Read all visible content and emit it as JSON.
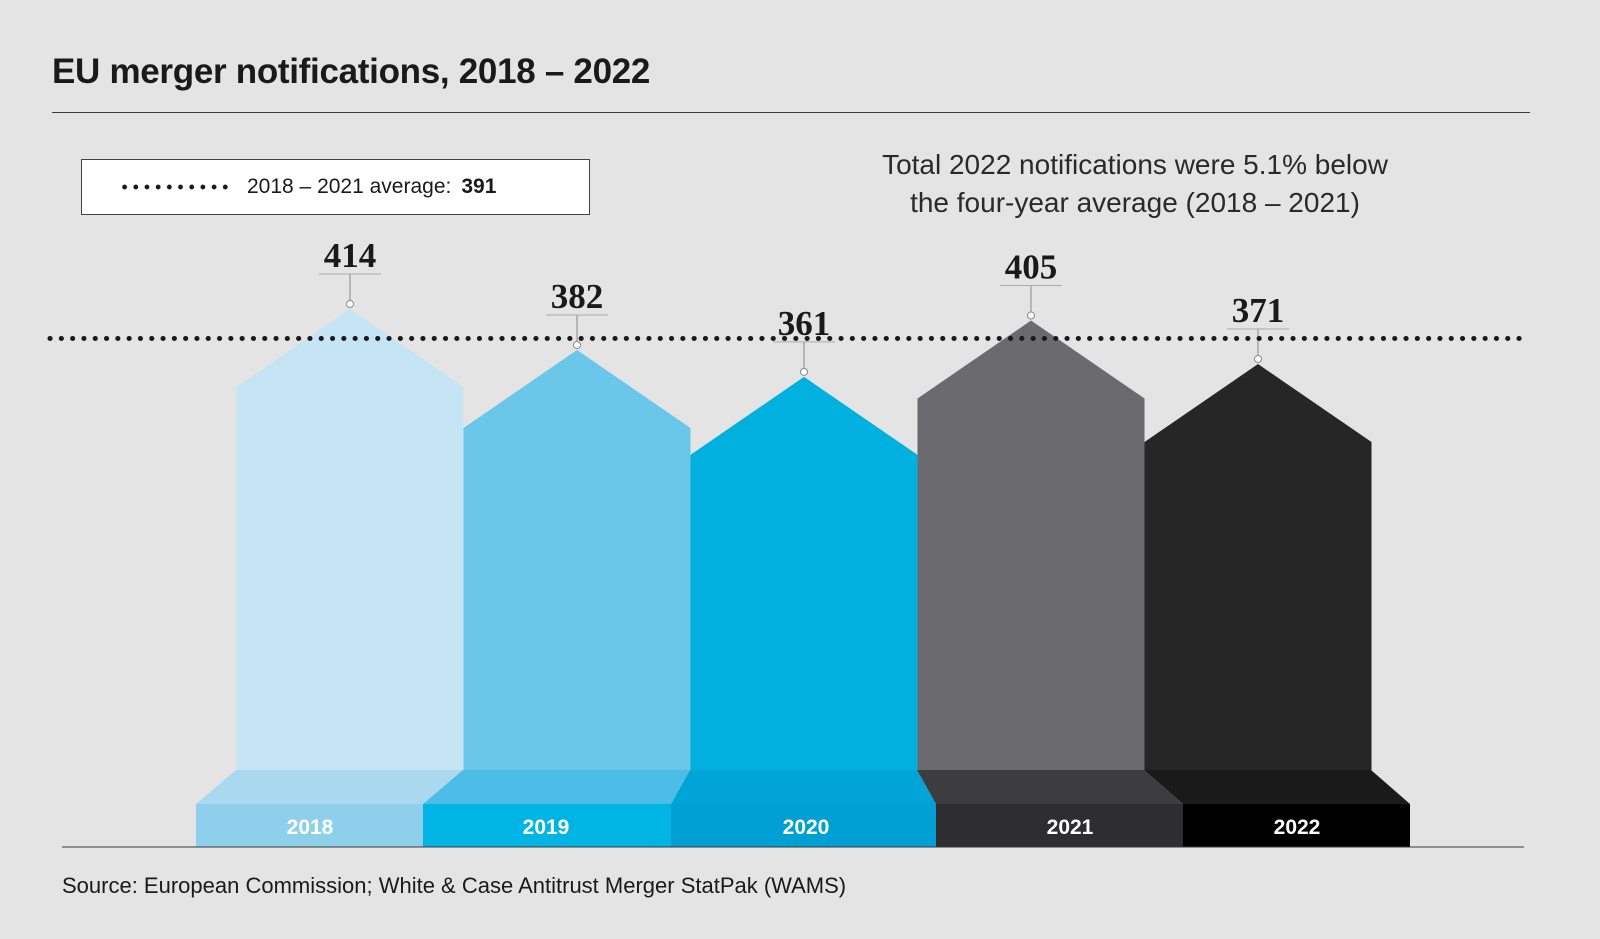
{
  "title": "EU merger notifications, 2018 – 2022",
  "legend": {
    "label": "2018 – 2021 average:",
    "value": "391"
  },
  "annotation": {
    "line1": "Total 2022 notifications were 5.1% below",
    "line2": "the four-year average (2018 – 2021)"
  },
  "source": "Source: European Commission; White & Case Antitrust Merger StatPak (WAMS)",
  "chart_data": {
    "type": "bar",
    "categories": [
      "2018",
      "2019",
      "2020",
      "2021",
      "2022"
    ],
    "values": [
      414,
      382,
      361,
      405,
      371
    ],
    "reference_line": {
      "label": "2018 – 2021 average",
      "value": 391,
      "style": "dotted"
    },
    "colors": {
      "body": [
        "#c5e5f5",
        "#6bc7ea",
        "#00b0df",
        "#6a6a6f",
        "#262626"
      ],
      "base_top": [
        "#a9d8ef",
        "#4cbde6",
        "#00a4d6",
        "#3d3d40",
        "#1a1a1a"
      ],
      "base_band": [
        "#8ed0ec",
        "#00b5e3",
        "#009fd4",
        "#2e2d2f",
        "#000000"
      ]
    },
    "grid": false,
    "legend_position": "top-left",
    "title": "EU merger notifications, 2018 – 2022"
  }
}
